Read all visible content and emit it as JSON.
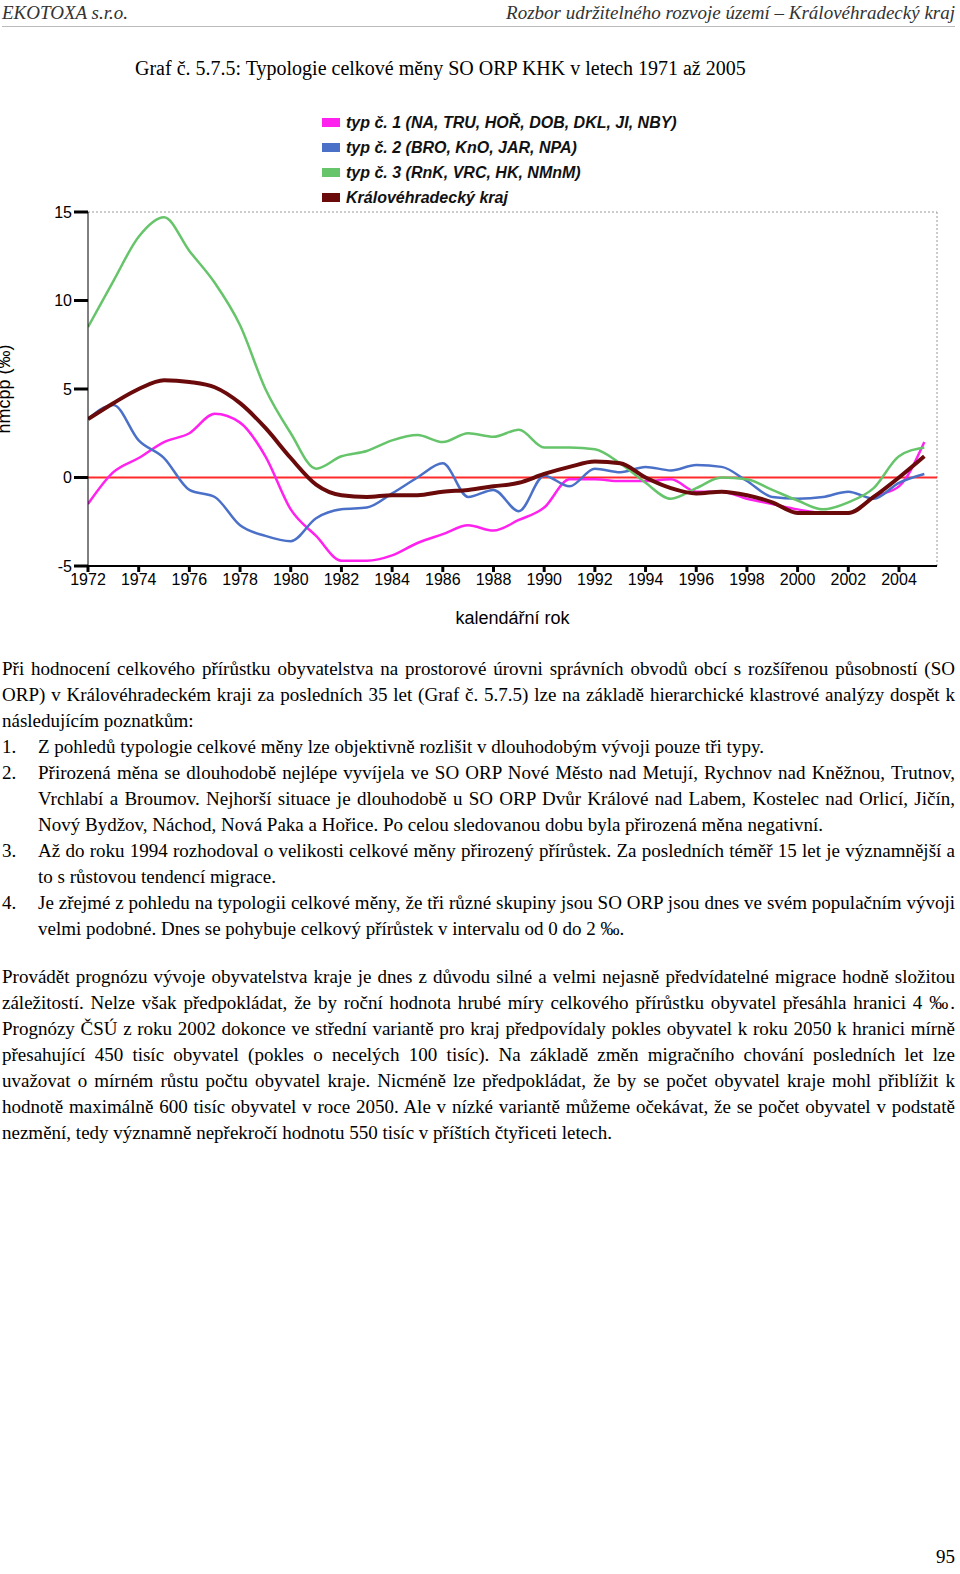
{
  "header": {
    "left": "EKOTOXA s.r.o.",
    "right": "Rozbor udržitelného rozvoje území – Královéhradecký kraj"
  },
  "figure_title": "Graf č. 5.7.5: Typologie celkové měny SO ORP KHK v letech 1971 až 2005",
  "chart_data": {
    "type": "line",
    "x_label": "kalendářní rok",
    "y_label": "hmcpp (‰)",
    "x": [
      1972,
      1973,
      1974,
      1975,
      1976,
      1977,
      1978,
      1979,
      1980,
      1981,
      1982,
      1983,
      1984,
      1985,
      1986,
      1987,
      1988,
      1989,
      1990,
      1991,
      1992,
      1993,
      1994,
      1995,
      1996,
      1997,
      1998,
      1999,
      2000,
      2001,
      2002,
      2003,
      2004,
      2005
    ],
    "series": [
      {
        "name": "typ č. 1 (NA, TRU, HOŘ, DOB, DKL, JI, NBY)",
        "color": "#ff22ee",
        "values": [
          -1.5,
          0.3,
          1.1,
          2.0,
          2.5,
          3.6,
          3.1,
          1.2,
          -1.8,
          -3.3,
          -4.7,
          -4.7,
          -4.4,
          -3.7,
          -3.2,
          -2.7,
          -3.0,
          -2.4,
          -1.7,
          -0.1,
          -0.1,
          -0.2,
          -0.2,
          -0.1,
          -0.8,
          -0.8,
          -1.2,
          -1.5,
          -1.8,
          -2.0,
          -2.0,
          -1.1,
          -0.5,
          2.0
        ]
      },
      {
        "name": "typ č. 2 (BRO, KnO, JAR, NPA)",
        "color": "#4a70c8",
        "values": [
          3.3,
          4.1,
          2.1,
          1.1,
          -0.7,
          -1.1,
          -2.7,
          -3.3,
          -3.6,
          -2.3,
          -1.8,
          -1.7,
          -0.9,
          0.0,
          0.8,
          -1.1,
          -0.7,
          -1.9,
          0.1,
          -0.5,
          0.5,
          0.3,
          0.6,
          0.4,
          0.7,
          0.6,
          -0.2,
          -1.1,
          -1.2,
          -1.1,
          -0.8,
          -1.2,
          -0.3,
          0.2
        ]
      },
      {
        "name": "typ č. 3 (RnK, VRC, HK, NMnM)",
        "color": "#66c46a",
        "values": [
          8.5,
          11.1,
          13.6,
          14.7,
          12.8,
          11.0,
          8.6,
          5.0,
          2.5,
          0.5,
          1.2,
          1.5,
          2.1,
          2.4,
          2.0,
          2.5,
          2.3,
          2.7,
          1.7,
          1.7,
          1.6,
          0.8,
          -0.3,
          -1.2,
          -0.6,
          0.0,
          -0.1,
          -0.7,
          -1.3,
          -1.8,
          -1.4,
          -0.6,
          1.2,
          1.7
        ]
      },
      {
        "name": "Královéhradecký kraj",
        "color": "#6b0a0a",
        "values": [
          3.3,
          4.2,
          5.0,
          5.5,
          5.4,
          5.1,
          4.2,
          2.8,
          1.1,
          -0.4,
          -1.0,
          -1.1,
          -1.0,
          -1.0,
          -0.8,
          -0.7,
          -0.5,
          -0.3,
          0.2,
          0.6,
          0.9,
          0.8,
          0.0,
          -0.6,
          -0.9,
          -0.8,
          -1.0,
          -1.4,
          -2.0,
          -2.0,
          -2.0,
          -1.1,
          0.0,
          1.2
        ]
      }
    ],
    "xlim": [
      1972,
      2005.5
    ],
    "xticks": [
      1972,
      1974,
      1976,
      1978,
      1980,
      1982,
      1984,
      1986,
      1988,
      1990,
      1992,
      1994,
      1996,
      1998,
      2000,
      2002,
      2004
    ],
    "ylim": [
      -5,
      15
    ],
    "yticks": [
      -5,
      0,
      5,
      10,
      15
    ],
    "baseline": 0,
    "baseline_color": "#ff2a2a",
    "legend": "top-left",
    "grid": false
  },
  "text": {
    "intro": "Při hodnocení celkového přírůstku obyvatelstva na prostorové úrovni správních obvodů obcí s rozšířenou působností (SO ORP) v Královéhradeckém kraji za posledních 35 let (Graf č. 5.7.5) lze na základě hierarchické klastrové analýzy dospět k následujícím poznatkům:",
    "list": [
      {
        "number": "1.",
        "text": "Z pohledů typologie celkové měny lze objektivně rozlišit v dlouhodobým vývoji pouze tři typy."
      },
      {
        "number": "2.",
        "text": "Přirozená měna se dlouhodobě nejlépe vyvíjela ve SO ORP Nové Město nad Metují, Rychnov nad Kněžnou, Trutnov, Vrchlabí a Broumov. Nejhorší situace je dlouhodobě u SO ORP Dvůr Králové nad Labem, Kostelec nad Orlicí, Jičín, Nový Bydžov, Náchod, Nová Paka a Hořice. Po celou sledovanou dobu byla přirozená měna negativní."
      },
      {
        "number": "3.",
        "text": "Až do roku 1994 rozhodoval o velikosti celkové měny přirozený přírůstek. Za posledních téměř 15 let je významnější a to s růstovou tendencí migrace."
      },
      {
        "number": "4.",
        "text": "Je zřejmé z pohledu na typologii celkové měny, že tři různé skupiny jsou SO ORP jsou dnes ve svém populačním vývoji velmi podobné. Dnes se pohybuje celkový přírůstek v intervalu od 0 do 2 ‰."
      }
    ],
    "final": "Provádět prognózu vývoje obyvatelstva kraje je dnes z důvodu silné a velmi nejasně předvídatelné migrace hodně složitou záležitostí. Nelze však předpokládat, že by roční hodnota hrubé míry celkového přírůstku obyvatel přesáhla hranici 4 ‰. Prognózy ČSÚ z roku 2002 dokonce ve střední variantě pro kraj předpovídaly pokles obyvatel k roku 2050 k hranici mírně přesahující 450 tisíc obyvatel (pokles o necelých 100 tisíc). Na základě změn migračního chování posledních let lze uvažovat o mírném růstu počtu obyvatel kraje. Nicméně lze předpokládat, že by se počet obyvatel kraje mohl přiblížit k hodnotě maximálně 600 tisíc obyvatel v roce 2050. Ale v nízké variantě můžeme očekávat, že se počet obyvatel v podstatě nezmění, tedy významně nepřekročí hodnotu 550 tisíc v příštích čtyřiceti letech."
  },
  "page_number": "95"
}
